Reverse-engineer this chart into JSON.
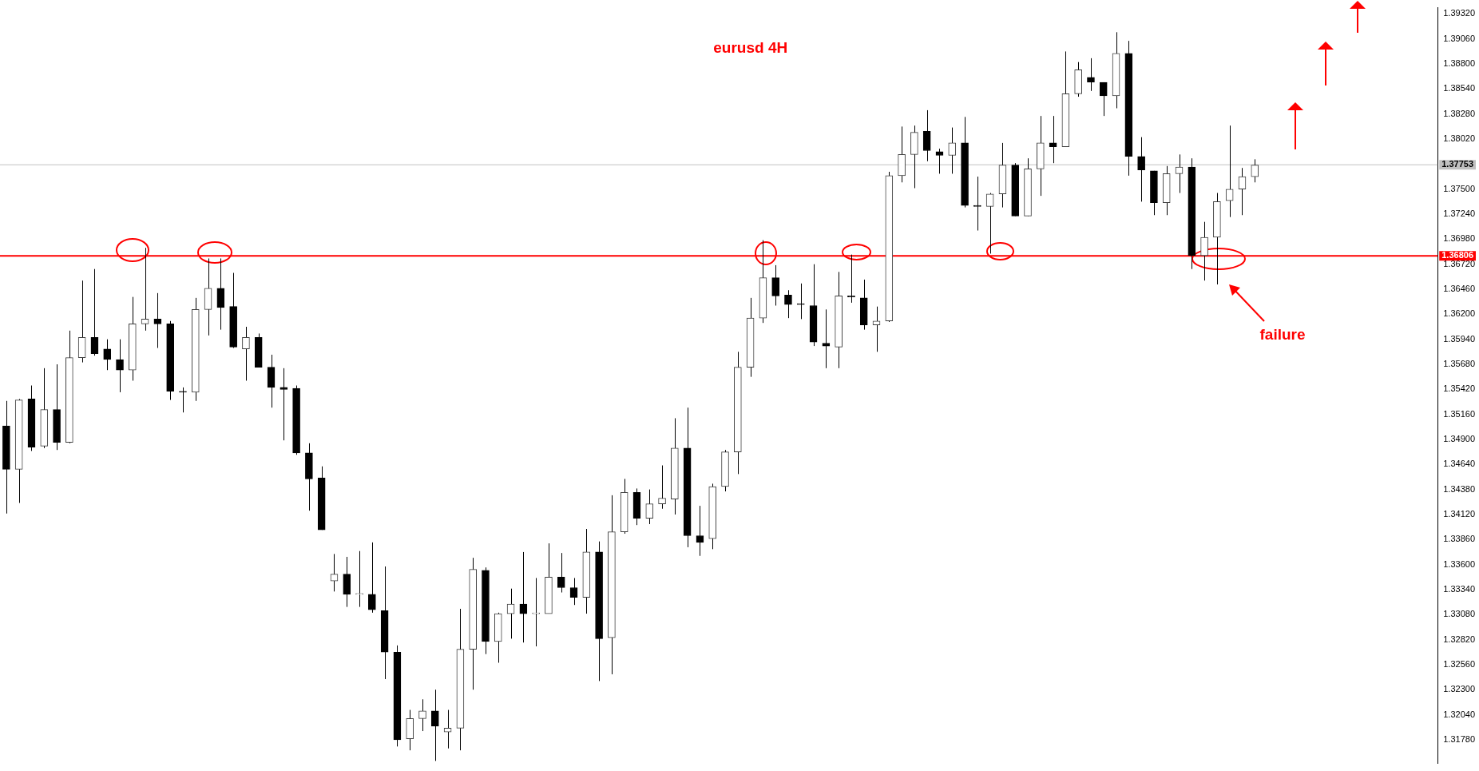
{
  "chart_data": {
    "type": "candlestick",
    "title": "eurusd 4H",
    "color": "#000000",
    "categories": [
      null,
      null,
      null,
      null,
      null,
      null,
      null,
      null,
      null,
      null,
      null,
      null,
      null,
      null,
      null,
      null,
      null,
      null,
      null,
      null,
      null,
      null,
      null,
      null,
      null,
      null,
      null,
      null,
      null,
      null,
      null,
      null,
      null,
      null,
      null,
      null,
      null,
      null,
      null,
      null,
      null,
      null,
      null,
      null,
      null,
      null,
      null,
      null,
      null,
      null,
      null,
      null,
      null,
      null,
      null,
      null,
      null,
      null,
      null,
      null,
      null,
      null,
      null,
      null,
      null,
      null,
      null,
      null,
      null,
      null,
      null,
      null,
      null,
      null,
      null,
      null,
      null,
      null,
      null,
      null,
      null,
      null,
      null,
      null,
      null,
      null,
      null,
      null,
      null,
      null,
      null,
      null,
      null,
      null,
      null,
      null,
      null,
      null,
      null,
      null,
      null,
      null,
      null,
      null,
      null,
      null,
      null,
      null,
      null,
      null,
      null,
      null,
      null,
      null
    ],
    "ohlc": [
      [
        1.3504,
        1.353,
        1.3413,
        1.3459
      ],
      [
        1.3459,
        1.3532,
        1.3424,
        1.3531
      ],
      [
        1.3532,
        1.3546,
        1.3478,
        1.3482
      ],
      [
        1.3483,
        1.3564,
        1.3481,
        1.3521
      ],
      [
        1.3521,
        1.3568,
        1.3479,
        1.3487
      ],
      [
        1.3487,
        1.3603,
        1.3486,
        1.3575
      ],
      [
        1.3575,
        1.3655,
        1.357,
        1.3596
      ],
      [
        1.3596,
        1.3667,
        1.3577,
        1.3579
      ],
      [
        1.3584,
        1.3594,
        1.3562,
        1.3573
      ],
      [
        1.3573,
        1.3594,
        1.3539,
        1.3562
      ],
      [
        1.3562,
        1.3638,
        1.3551,
        1.361
      ],
      [
        1.361,
        1.3689,
        1.3603,
        1.3615
      ],
      [
        1.3615,
        1.3642,
        1.3585,
        1.361
      ],
      [
        1.361,
        1.3613,
        1.3531,
        1.354
      ],
      [
        1.354,
        1.3544,
        1.3518,
        1.3539
      ],
      [
        1.3539,
        1.3637,
        1.353,
        1.3625
      ],
      [
        1.3625,
        1.3678,
        1.3598,
        1.3647
      ],
      [
        1.3647,
        1.3678,
        1.3604,
        1.3627
      ],
      [
        1.3628,
        1.3663,
        1.3585,
        1.3586
      ],
      [
        1.3584,
        1.3607,
        1.3551,
        1.3596
      ],
      [
        1.3596,
        1.36,
        1.3565,
        1.3565
      ],
      [
        1.3565,
        1.3578,
        1.3523,
        1.3544
      ],
      [
        1.3544,
        1.3564,
        1.3489,
        1.3542
      ],
      [
        1.3543,
        1.3546,
        1.3474,
        1.3476
      ],
      [
        1.3476,
        1.3486,
        1.3416,
        1.3449
      ],
      [
        1.345,
        1.3462,
        1.3396,
        1.3396
      ],
      [
        1.3343,
        1.3371,
        1.3332,
        1.335
      ],
      [
        1.335,
        1.3368,
        1.3316,
        1.3329
      ],
      [
        1.3329,
        1.3374,
        1.3316,
        1.3329
      ],
      [
        1.3329,
        1.3383,
        1.331,
        1.3313
      ],
      [
        1.3312,
        1.3358,
        1.3241,
        1.3269
      ],
      [
        1.3269,
        1.3276,
        1.3171,
        1.3178
      ],
      [
        1.3179,
        1.3209,
        1.3167,
        1.32
      ],
      [
        1.32,
        1.322,
        1.3187,
        1.3208
      ],
      [
        1.3208,
        1.323,
        1.3156,
        1.3192
      ],
      [
        1.3186,
        1.3209,
        1.3169,
        1.319
      ],
      [
        1.319,
        1.3314,
        1.3167,
        1.3272
      ],
      [
        1.3272,
        1.3367,
        1.323,
        1.3355
      ],
      [
        1.3354,
        1.3357,
        1.3267,
        1.328
      ],
      [
        1.328,
        1.331,
        1.3258,
        1.3309
      ],
      [
        1.3309,
        1.3335,
        1.3283,
        1.3319
      ],
      [
        1.3319,
        1.3373,
        1.3279,
        1.3309
      ],
      [
        1.3309,
        1.3346,
        1.3275,
        1.3309
      ],
      [
        1.3309,
        1.3382,
        1.3309,
        1.3347
      ],
      [
        1.3347,
        1.3372,
        1.3331,
        1.3336
      ],
      [
        1.3336,
        1.3346,
        1.3318,
        1.3326
      ],
      [
        1.3326,
        1.3397,
        1.3309,
        1.3373
      ],
      [
        1.3373,
        1.3384,
        1.3239,
        1.3283
      ],
      [
        1.3284,
        1.3432,
        1.3246,
        1.3394
      ],
      [
        1.3394,
        1.3449,
        1.3392,
        1.3435
      ],
      [
        1.3435,
        1.3439,
        1.3401,
        1.3408
      ],
      [
        1.3408,
        1.3438,
        1.3402,
        1.3423
      ],
      [
        1.3423,
        1.3463,
        1.3418,
        1.3429
      ],
      [
        1.3428,
        1.3512,
        1.3412,
        1.3481
      ],
      [
        1.3481,
        1.3523,
        1.3378,
        1.339
      ],
      [
        1.339,
        1.3421,
        1.3369,
        1.3383
      ],
      [
        1.3387,
        1.3444,
        1.3376,
        1.3441
      ],
      [
        1.3441,
        1.3479,
        1.3436,
        1.3477
      ],
      [
        1.3477,
        1.3581,
        1.3454,
        1.3565
      ],
      [
        1.3565,
        1.3637,
        1.3555,
        1.3616
      ],
      [
        1.3616,
        1.3697,
        1.3611,
        1.3658
      ],
      [
        1.3658,
        1.3671,
        1.3629,
        1.3639
      ],
      [
        1.364,
        1.3645,
        1.3616,
        1.363
      ],
      [
        1.3631,
        1.3652,
        1.3615,
        1.363
      ],
      [
        1.3629,
        1.3672,
        1.3587,
        1.3591
      ],
      [
        1.359,
        1.3625,
        1.3564,
        1.3587
      ],
      [
        1.3586,
        1.3664,
        1.3564,
        1.3639
      ],
      [
        1.3639,
        1.3682,
        1.3632,
        1.3638
      ],
      [
        1.3637,
        1.3656,
        1.3604,
        1.3609
      ],
      [
        1.3609,
        1.3628,
        1.3581,
        1.3613
      ],
      [
        1.3613,
        1.3768,
        1.3612,
        1.3764
      ],
      [
        1.3764,
        1.3815,
        1.3757,
        1.3786
      ],
      [
        1.3786,
        1.3816,
        1.3751,
        1.3809
      ],
      [
        1.381,
        1.3832,
        1.3779,
        1.379
      ],
      [
        1.3789,
        1.3792,
        1.3766,
        1.3785
      ],
      [
        1.3785,
        1.3814,
        1.3766,
        1.3798
      ],
      [
        1.3798,
        1.3825,
        1.3731,
        1.3733
      ],
      [
        1.3733,
        1.3763,
        1.3707,
        1.3732
      ],
      [
        1.3732,
        1.3746,
        1.3683,
        1.3745
      ],
      [
        1.3745,
        1.3798,
        1.3731,
        1.3775
      ],
      [
        1.3775,
        1.3777,
        1.3722,
        1.3722
      ],
      [
        1.3722,
        1.3782,
        1.3722,
        1.3771
      ],
      [
        1.3771,
        1.3826,
        1.3743,
        1.3798
      ],
      [
        1.3798,
        1.3826,
        1.3777,
        1.3794
      ],
      [
        1.3794,
        1.3893,
        1.3794,
        1.3849
      ],
      [
        1.3849,
        1.3882,
        1.3846,
        1.3874
      ],
      [
        1.3866,
        1.3886,
        1.3852,
        1.3861
      ],
      [
        1.3861,
        1.3861,
        1.3826,
        1.3847
      ],
      [
        1.3847,
        1.3913,
        1.3834,
        1.3891
      ],
      [
        1.3891,
        1.3904,
        1.3764,
        1.3784
      ],
      [
        1.3784,
        1.3804,
        1.3737,
        1.377
      ],
      [
        1.3769,
        1.3769,
        1.3723,
        1.3736
      ],
      [
        1.3736,
        1.3774,
        1.3723,
        1.3766
      ],
      [
        1.3766,
        1.3786,
        1.3746,
        1.3773
      ],
      [
        1.3773,
        1.3782,
        1.3667,
        1.3681
      ],
      [
        1.3681,
        1.3716,
        1.3655,
        1.37
      ],
      [
        1.37,
        1.3746,
        1.3651,
        1.3737
      ],
      [
        1.3738,
        1.3816,
        1.3721,
        1.375
      ],
      [
        1.375,
        1.3772,
        1.3723,
        1.3763
      ],
      [
        1.3763,
        1.3781,
        1.3757,
        1.3775
      ],
      null,
      null,
      null,
      null,
      null,
      null,
      null,
      null,
      null,
      null,
      null,
      null,
      null,
      null
    ],
    "colors": [
      "#000000",
      "#404040",
      "#000000",
      "#404040",
      "#000000",
      "#404040",
      "#404040",
      "#000000",
      "#000000",
      "#000000",
      "#404040",
      "#404040",
      "#000000",
      "#000000",
      "#000000",
      "#404040",
      "#404040",
      "#000000",
      "#000000",
      "#404040",
      "#000000",
      "#000000",
      "#000000",
      "#000000",
      "#000000",
      "#000000",
      "#404040",
      "#000000",
      "#404040",
      "#000000",
      "#000000",
      "#000000",
      "#404040",
      "#404040",
      "#000000",
      "#404040",
      "#404040",
      "#404040",
      "#000000",
      "#404040",
      "#404040",
      "#000000",
      "#404040",
      "#404040",
      "#000000",
      "#000000",
      "#404040",
      "#000000",
      "#404040",
      "#404040",
      "#000000",
      "#404040",
      "#404040",
      "#404040",
      "#000000",
      "#000000",
      "#404040",
      "#404040",
      "#404040",
      "#404040",
      "#404040",
      "#000000",
      "#000000",
      "#000000",
      "#000000",
      "#000000",
      "#404040",
      "#000000",
      "#000000",
      "#404040",
      "#404040",
      "#404040",
      "#404040",
      "#000000",
      "#000000",
      "#404040",
      "#000000",
      "#000000",
      "#404040",
      "#404040",
      "#000000",
      "#404040",
      "#404040",
      "#000000",
      "#404040",
      "#404040",
      "#000000",
      "#000000",
      "#404040",
      "#000000",
      "#000000",
      "#000000",
      "#404040",
      "#404040",
      "#000000",
      "#404040",
      "#404040",
      "#404040",
      "#404040",
      "#404040",
      null,
      null,
      null,
      null,
      null,
      null,
      null,
      null,
      null,
      null,
      null,
      null,
      null,
      null
    ],
    "ylim": [
      1.31535,
      1.39385
    ],
    "yticks": [
      {
        "value": 1.3178,
        "label": "1.31780"
      },
      {
        "value": 1.3204,
        "label": "1.32040"
      },
      {
        "value": 1.323,
        "label": "1.32300"
      },
      {
        "value": 1.3256,
        "label": "1.32560"
      },
      {
        "value": 1.3282,
        "label": "1.32820"
      },
      {
        "value": 1.3308,
        "label": "1.33080"
      },
      {
        "value": 1.3334,
        "label": "1.33340"
      },
      {
        "value": 1.336,
        "label": "1.33600"
      },
      {
        "value": 1.3386,
        "label": "1.33860"
      },
      {
        "value": 1.3412,
        "label": "1.34120"
      },
      {
        "value": 1.3438,
        "label": "1.34380"
      },
      {
        "value": 1.3464,
        "label": "1.34640"
      },
      {
        "value": 1.349,
        "label": "1.34900"
      },
      {
        "value": 1.3516,
        "label": "1.35160"
      },
      {
        "value": 1.3542,
        "label": "1.35420"
      },
      {
        "value": 1.3568,
        "label": "1.35680"
      },
      {
        "value": 1.3594,
        "label": "1.35940"
      },
      {
        "value": 1.362,
        "label": "1.36200"
      },
      {
        "value": 1.3646,
        "label": "1.36460"
      },
      {
        "value": 1.3672,
        "label": "1.36720"
      },
      {
        "value": 1.3698,
        "label": "1.36980"
      },
      {
        "value": 1.3724,
        "label": "1.37240"
      },
      {
        "value": 1.375,
        "label": "1.37500"
      },
      {
        "value": 1.3776,
        "label": null
      },
      {
        "value": 1.3802,
        "label": "1.38020"
      },
      {
        "value": 1.3828,
        "label": "1.38280"
      },
      {
        "value": 1.3854,
        "label": "1.38540"
      },
      {
        "value": 1.388,
        "label": "1.38800"
      },
      {
        "value": 1.3906,
        "label": "1.39060"
      },
      {
        "value": 1.3932,
        "label": "1.39320"
      }
    ],
    "ref_lines": [
      {
        "axis": "y",
        "value": 1.37753,
        "label": "1.37753",
        "color": "#c0c0c0"
      },
      {
        "axis": "y",
        "value": 1.36806,
        "label": "1.36806",
        "color": "#ff0000"
      }
    ],
    "annotations": [
      "failure"
    ],
    "legend": false
  }
}
